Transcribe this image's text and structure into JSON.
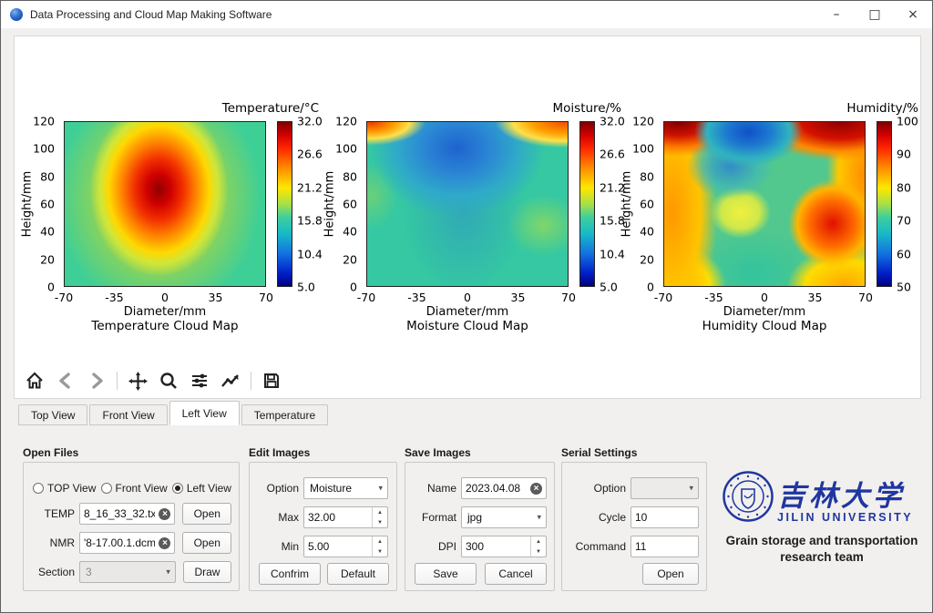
{
  "window": {
    "title": "Data Processing and Cloud Map Making Software",
    "minimize": "–",
    "maximize": "□",
    "close": "×"
  },
  "toolbar": {
    "items": [
      "home",
      "back",
      "forward",
      "pan",
      "zoom",
      "configure-subplots",
      "edit-plot",
      "save-figure"
    ]
  },
  "tabs": [
    {
      "label": "Top View",
      "active": false
    },
    {
      "label": "Front View",
      "active": false
    },
    {
      "label": "Left View",
      "active": true
    },
    {
      "label": "Temperature",
      "active": false
    }
  ],
  "chart_data": [
    {
      "type": "heatmap",
      "colormap": "jet",
      "title": "Temperature Cloud Map",
      "colorbar_label": "Temperature/°C",
      "xlabel": "Diameter/mm",
      "ylabel": "Height/mm",
      "x_ticks": [
        -70,
        -35,
        0,
        35,
        70
      ],
      "y_ticks_top_to_bottom": [
        120,
        100,
        80,
        60,
        40,
        20,
        0
      ],
      "colorbar_ticks_top_to_bottom": [
        "32.0",
        "26.6",
        "21.2",
        "15.8",
        "10.4",
        "5.0"
      ],
      "value_range": [
        5.0,
        32.0
      ],
      "features": [
        {
          "desc": "hot core (dark red)",
          "x_mm": 5,
          "y_mm": 78,
          "value": 32
        },
        {
          "desc": "warm ring (orange-yellow)",
          "x_mm": 5,
          "y_mm": 60,
          "value": 24
        },
        {
          "desc": "ambient field (teal-green)",
          "value": 17
        }
      ]
    },
    {
      "type": "heatmap",
      "colormap": "jet",
      "title": "Moisture Cloud Map",
      "colorbar_label": "Moisture/%",
      "xlabel": "Diameter/mm",
      "ylabel": "Height/mm",
      "x_ticks": [
        -70,
        -35,
        0,
        35,
        70
      ],
      "y_ticks_top_to_bottom": [
        120,
        100,
        80,
        60,
        40,
        20,
        0
      ],
      "colorbar_ticks_top_to_bottom": [
        "32.0",
        "26.6",
        "21.2",
        "15.8",
        "10.4",
        "5.0"
      ],
      "value_range": [
        5.0,
        32.0
      ],
      "features": [
        {
          "desc": "dry blue zone top-center",
          "x_mm": -8,
          "y_mm": 100,
          "value": 11
        },
        {
          "desc": "moist top-left corner (orange)",
          "x_mm": -68,
          "y_mm": 120,
          "value": 29
        },
        {
          "desc": "moist top-right corner (orange)",
          "x_mm": 62,
          "y_mm": 120,
          "value": 28
        },
        {
          "desc": "light green patch right-middle",
          "x_mm": 52,
          "y_mm": 45,
          "value": 20
        },
        {
          "desc": "light green patch left edge",
          "x_mm": -68,
          "y_mm": 45,
          "value": 19
        },
        {
          "desc": "ambient field (teal)",
          "value": 16
        }
      ]
    },
    {
      "type": "heatmap",
      "colormap": "jet",
      "title": "Humidity Cloud Map",
      "colorbar_label": "Humidity/%",
      "xlabel": "Diameter/mm",
      "ylabel": "Height/mm",
      "x_ticks": [
        -70,
        -35,
        0,
        35,
        70
      ],
      "y_ticks_top_to_bottom": [
        120,
        100,
        80,
        60,
        40,
        20,
        0
      ],
      "colorbar_ticks_top_to_bottom": [
        100,
        90,
        80,
        70,
        60,
        50
      ],
      "value_range": [
        50,
        100
      ],
      "features": [
        {
          "desc": "saturated top-left corner (dark red)",
          "x_mm": -60,
          "y_mm": 118,
          "value": 100
        },
        {
          "desc": "saturated top-right corner (dark red)",
          "x_mm": 45,
          "y_mm": 118,
          "value": 100
        },
        {
          "desc": "dry pocket top-center (blue)",
          "x_mm": -5,
          "y_mm": 108,
          "value": 55
        },
        {
          "desc": "humid left band (orange)",
          "x_mm": -60,
          "y_mm": 50,
          "value": 88
        },
        {
          "desc": "humid spot right (red)",
          "x_mm": 50,
          "y_mm": 43,
          "value": 96
        },
        {
          "desc": "yellow pocket center-left",
          "x_mm": -15,
          "y_mm": 53,
          "value": 80
        },
        {
          "desc": "green field center-bottom",
          "value": 72
        }
      ]
    }
  ],
  "panels": {
    "open_files": {
      "title": "Open Files",
      "radios": [
        {
          "label": "TOP View",
          "selected": false
        },
        {
          "label": "Front View",
          "selected": false
        },
        {
          "label": "Left View",
          "selected": true
        }
      ],
      "temp_label": "TEMP",
      "temp_value": "8_16_33_32.txt",
      "temp_button": "Open",
      "nmr_label": "NMR",
      "nmr_value": "'8-17.00.1.dcm",
      "nmr_button": "Open",
      "section_label": "Section",
      "section_value": "3",
      "section_button": "Draw"
    },
    "edit_images": {
      "title": "Edit Images",
      "option_label": "Option",
      "option_value": "Moisture",
      "max_label": "Max",
      "max_value": "32.00",
      "min_label": "Min",
      "min_value": "5.00",
      "confirm_label": "Confrim",
      "default_label": "Default"
    },
    "save_images": {
      "title": "Save Images",
      "name_label": "Name",
      "name_value": "2023.04.08",
      "format_label": "Format",
      "format_value": "jpg",
      "dpi_label": "DPI",
      "dpi_value": "300",
      "save_label": "Save",
      "cancel_label": "Cancel"
    },
    "serial_settings": {
      "title": "Serial Settings",
      "option_label": "Option",
      "option_value": "",
      "cycle_label": "Cycle",
      "cycle_value": "10",
      "command_label": "Command",
      "command_value": "11",
      "open_label": "Open"
    }
  },
  "branding": {
    "university_cn": "吉林大学",
    "university_en": "JILIN UNIVERSITY",
    "team_line1": "Grain storage and transportation",
    "team_line2": "research team",
    "brand_blue": "#2036a0"
  }
}
